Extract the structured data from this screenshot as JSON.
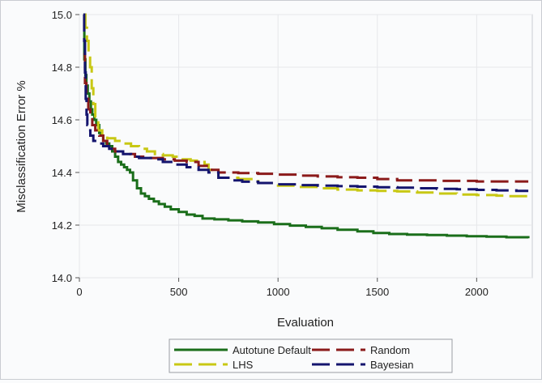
{
  "chart_data": {
    "type": "line",
    "title": "",
    "xlabel": "Evaluation",
    "ylabel": "Misclassification Error %",
    "xlim": [
      0,
      2280
    ],
    "ylim": [
      14.0,
      15.0
    ],
    "x_ticks": [
      0,
      500,
      1000,
      1500,
      2000
    ],
    "y_ticks": [
      14.0,
      14.2,
      14.4,
      14.6,
      14.8,
      15.0
    ],
    "x_tick_labels": [
      "0",
      "500",
      "1000",
      "1500",
      "2000"
    ],
    "y_tick_labels": [
      "14.0",
      "14.2",
      "14.4",
      "14.6",
      "14.8",
      "15.0"
    ],
    "grid": true,
    "legend_position": "bottom",
    "series": [
      {
        "name": "Autotune Default",
        "color": "#1a6e1a",
        "style": "solid",
        "points": [
          [
            20,
            15.0
          ],
          [
            25,
            14.83
          ],
          [
            30,
            14.77
          ],
          [
            35,
            14.73
          ],
          [
            42,
            14.7
          ],
          [
            50,
            14.67
          ],
          [
            58,
            14.64
          ],
          [
            65,
            14.62
          ],
          [
            75,
            14.6
          ],
          [
            85,
            14.58
          ],
          [
            100,
            14.55
          ],
          [
            110,
            14.54
          ],
          [
            120,
            14.52
          ],
          [
            135,
            14.51
          ],
          [
            150,
            14.5
          ],
          [
            165,
            14.48
          ],
          [
            180,
            14.46
          ],
          [
            195,
            14.44
          ],
          [
            210,
            14.43
          ],
          [
            225,
            14.42
          ],
          [
            240,
            14.41
          ],
          [
            255,
            14.4
          ],
          [
            270,
            14.37
          ],
          [
            290,
            14.34
          ],
          [
            310,
            14.32
          ],
          [
            330,
            14.31
          ],
          [
            350,
            14.3
          ],
          [
            375,
            14.29
          ],
          [
            400,
            14.28
          ],
          [
            430,
            14.27
          ],
          [
            460,
            14.26
          ],
          [
            500,
            14.25
          ],
          [
            540,
            14.24
          ],
          [
            580,
            14.235
          ],
          [
            620,
            14.225
          ],
          [
            680,
            14.222
          ],
          [
            750,
            14.218
          ],
          [
            820,
            14.214
          ],
          [
            900,
            14.21
          ],
          [
            980,
            14.204
          ],
          [
            1060,
            14.198
          ],
          [
            1140,
            14.193
          ],
          [
            1220,
            14.188
          ],
          [
            1300,
            14.182
          ],
          [
            1400,
            14.176
          ],
          [
            1480,
            14.17
          ],
          [
            1560,
            14.166
          ],
          [
            1650,
            14.164
          ],
          [
            1750,
            14.162
          ],
          [
            1850,
            14.16
          ],
          [
            1950,
            14.158
          ],
          [
            2050,
            14.156
          ],
          [
            2150,
            14.154
          ],
          [
            2260,
            14.15
          ]
        ]
      },
      {
        "name": "Random",
        "color": "#8b1a1a",
        "style": "dashed",
        "points": [
          [
            20,
            14.85
          ],
          [
            28,
            14.74
          ],
          [
            35,
            14.68
          ],
          [
            45,
            14.64
          ],
          [
            55,
            14.61
          ],
          [
            65,
            14.58
          ],
          [
            80,
            14.56
          ],
          [
            100,
            14.54
          ],
          [
            120,
            14.52
          ],
          [
            140,
            14.5
          ],
          [
            160,
            14.49
          ],
          [
            180,
            14.48
          ],
          [
            220,
            14.47
          ],
          [
            280,
            14.46
          ],
          [
            350,
            14.455
          ],
          [
            420,
            14.45
          ],
          [
            480,
            14.445
          ],
          [
            540,
            14.44
          ],
          [
            600,
            14.425
          ],
          [
            650,
            14.41
          ],
          [
            700,
            14.4
          ],
          [
            800,
            14.398
          ],
          [
            900,
            14.395
          ],
          [
            1000,
            14.392
          ],
          [
            1100,
            14.388
          ],
          [
            1200,
            14.385
          ],
          [
            1300,
            14.382
          ],
          [
            1400,
            14.38
          ],
          [
            1500,
            14.375
          ],
          [
            1600,
            14.37
          ],
          [
            1800,
            14.368
          ],
          [
            2000,
            14.366
          ],
          [
            2260,
            14.366
          ]
        ]
      },
      {
        "name": "LHS",
        "color": "#c8c814",
        "style": "dashed",
        "points": [
          [
            20,
            15.0
          ],
          [
            30,
            14.95
          ],
          [
            38,
            14.9
          ],
          [
            46,
            14.85
          ],
          [
            54,
            14.8
          ],
          [
            62,
            14.72
          ],
          [
            70,
            14.66
          ],
          [
            80,
            14.6
          ],
          [
            95,
            14.56
          ],
          [
            115,
            14.54
          ],
          [
            140,
            14.53
          ],
          [
            180,
            14.52
          ],
          [
            220,
            14.51
          ],
          [
            260,
            14.5
          ],
          [
            300,
            14.49
          ],
          [
            340,
            14.48
          ],
          [
            380,
            14.47
          ],
          [
            420,
            14.465
          ],
          [
            470,
            14.46
          ],
          [
            520,
            14.45
          ],
          [
            560,
            14.445
          ],
          [
            600,
            14.44
          ],
          [
            630,
            14.43
          ],
          [
            650,
            14.41
          ],
          [
            700,
            14.38
          ],
          [
            800,
            14.375
          ],
          [
            900,
            14.36
          ],
          [
            1000,
            14.35
          ],
          [
            1100,
            14.345
          ],
          [
            1200,
            14.34
          ],
          [
            1300,
            14.335
          ],
          [
            1400,
            14.332
          ],
          [
            1500,
            14.33
          ],
          [
            1600,
            14.328
          ],
          [
            1700,
            14.324
          ],
          [
            1800,
            14.32
          ],
          [
            1900,
            14.316
          ],
          [
            2000,
            14.314
          ],
          [
            2100,
            14.312
          ],
          [
            2150,
            14.31
          ],
          [
            2260,
            14.3
          ]
        ]
      },
      {
        "name": "Bayesian",
        "color": "#14146e",
        "style": "dashed",
        "points": [
          [
            20,
            15.0
          ],
          [
            24,
            14.9
          ],
          [
            28,
            14.78
          ],
          [
            32,
            14.68
          ],
          [
            36,
            14.62
          ],
          [
            40,
            14.58
          ],
          [
            45,
            14.56
          ],
          [
            55,
            14.54
          ],
          [
            70,
            14.52
          ],
          [
            90,
            14.51
          ],
          [
            120,
            14.5
          ],
          [
            150,
            14.49
          ],
          [
            180,
            14.48
          ],
          [
            220,
            14.47
          ],
          [
            260,
            14.46
          ],
          [
            300,
            14.455
          ],
          [
            360,
            14.45
          ],
          [
            420,
            14.44
          ],
          [
            480,
            14.43
          ],
          [
            540,
            14.42
          ],
          [
            600,
            14.41
          ],
          [
            650,
            14.4
          ],
          [
            700,
            14.38
          ],
          [
            760,
            14.37
          ],
          [
            820,
            14.365
          ],
          [
            900,
            14.36
          ],
          [
            1000,
            14.355
          ],
          [
            1100,
            14.352
          ],
          [
            1200,
            14.35
          ],
          [
            1300,
            14.348
          ],
          [
            1400,
            14.346
          ],
          [
            1500,
            14.344
          ],
          [
            1600,
            14.342
          ],
          [
            1700,
            14.34
          ],
          [
            1800,
            14.338
          ],
          [
            1900,
            14.336
          ],
          [
            2000,
            14.334
          ],
          [
            2100,
            14.332
          ],
          [
            2200,
            14.33
          ],
          [
            2260,
            14.33
          ]
        ]
      }
    ]
  }
}
